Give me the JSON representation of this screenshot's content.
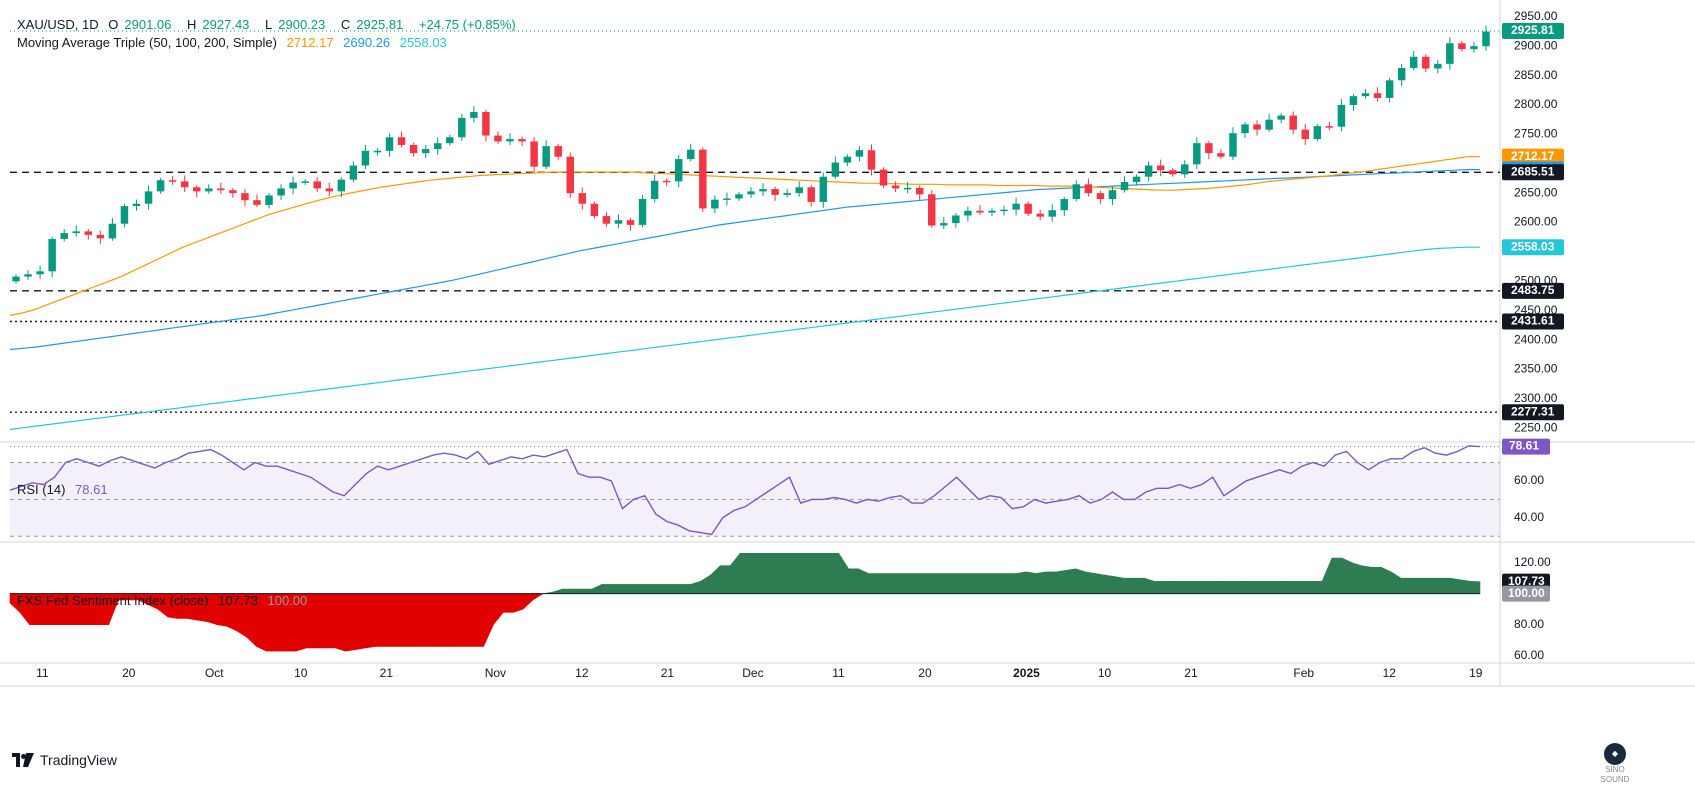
{
  "header": {
    "symbol": "XAU/USD, 1D",
    "open_label": "O",
    "open": "2901.06",
    "high_label": "H",
    "high": "2927.43",
    "low_label": "L",
    "low": "2900.23",
    "close_label": "C",
    "close": "2925.81",
    "change": "+24.75 (+0.85%)",
    "ma_title": "Moving Average Triple (50, 100, 200, Simple)",
    "ma50": "2712.17",
    "ma100": "2690.26",
    "ma200": "2558.03"
  },
  "rsi_legend": {
    "title": "RSI (14)",
    "value": "78.61"
  },
  "fxs_legend": {
    "title": "FXS Fed Sentiment Index (close)",
    "value": "107.73",
    "base": "100.00"
  },
  "footer": {
    "brand": "TradingView",
    "watermark": "SINO SOUND"
  },
  "colors": {
    "up": "#089981",
    "down": "#f23645",
    "ma50": "#ff9800",
    "ma100": "#2196f3",
    "ma200": "#26c6da",
    "rsi": "#7e57c2",
    "sent_pos": "#2e7d52",
    "sent_neg": "#e00000"
  },
  "chart_data": [
    {
      "type": "candlestick",
      "title": "XAU/USD, 1D",
      "ylim": [
        2230,
        2965
      ],
      "y_ticks": [
        "2950.00",
        "2900.00",
        "2850.00",
        "2800.00",
        "2750.00",
        "2700.00",
        "2650.00",
        "2600.00",
        "2550.00",
        "2500.00",
        "2450.00",
        "2400.00",
        "2350.00",
        "2300.00",
        "2250.00"
      ],
      "x_ticks": [
        "11",
        "20",
        "Oct",
        "10",
        "21",
        "Nov",
        "12",
        "21",
        "Dec",
        "11",
        "20",
        "2025",
        "10",
        "21",
        "Feb",
        "12",
        "19"
      ],
      "closes": [
        2508,
        2512,
        2517,
        2572,
        2582,
        2585,
        2579,
        2573,
        2598,
        2628,
        2632,
        2653,
        2672,
        2670,
        2660,
        2653,
        2658,
        2655,
        2650,
        2638,
        2630,
        2646,
        2658,
        2668,
        2670,
        2658,
        2653,
        2673,
        2697,
        2722,
        2722,
        2745,
        2732,
        2718,
        2725,
        2735,
        2745,
        2778,
        2788,
        2748,
        2738,
        2742,
        2738,
        2695,
        2730,
        2712,
        2650,
        2632,
        2611,
        2598,
        2604,
        2596,
        2640,
        2671,
        2670,
        2708,
        2724,
        2624,
        2639,
        2641,
        2648,
        2653,
        2657,
        2647,
        2650,
        2660,
        2635,
        2678,
        2702,
        2712,
        2723,
        2690,
        2663,
        2658,
        2659,
        2648,
        2595,
        2599,
        2612,
        2620,
        2617,
        2620,
        2622,
        2632,
        2615,
        2610,
        2621,
        2640,
        2665,
        2650,
        2640,
        2655,
        2669,
        2678,
        2697,
        2689,
        2682,
        2699,
        2735,
        2718,
        2712,
        2752,
        2767,
        2758,
        2775,
        2782,
        2758,
        2742,
        2764,
        2763,
        2800,
        2815,
        2820,
        2812,
        2842,
        2863,
        2882,
        2862,
        2870,
        2905,
        2895,
        2900,
        2925
      ],
      "ma50": [
        2442,
        2446,
        2452,
        2460,
        2468,
        2476,
        2484,
        2492,
        2500,
        2508,
        2518,
        2528,
        2538,
        2548,
        2558,
        2566,
        2574,
        2582,
        2590,
        2598,
        2606,
        2614,
        2620,
        2626,
        2632,
        2638,
        2643,
        2648,
        2652,
        2656,
        2660,
        2663,
        2666,
        2669,
        2672,
        2674,
        2676,
        2678,
        2680,
        2681,
        2682,
        2683,
        2684,
        2685,
        2686,
        2686,
        2686,
        2686,
        2686,
        2686,
        2686,
        2685,
        2684,
        2683,
        2682,
        2681,
        2680,
        2679,
        2678,
        2677,
        2676,
        2675,
        2674,
        2673,
        2672,
        2671,
        2670,
        2669,
        2668,
        2667,
        2667,
        2666,
        2666,
        2665,
        2665,
        2665,
        2664,
        2664,
        2664,
        2664,
        2663,
        2663,
        2663,
        2663,
        2662,
        2662,
        2662,
        2661,
        2660,
        2659,
        2658,
        2657,
        2656,
        2655,
        2655,
        2656,
        2657,
        2658,
        2660,
        2662,
        2664,
        2667,
        2670,
        2672,
        2674,
        2676,
        2678,
        2680,
        2683,
        2685,
        2688,
        2691,
        2694,
        2697,
        2700,
        2703,
        2706,
        2709,
        2712,
        2712
      ],
      "ma100": [
        2384,
        2386,
        2388,
        2391,
        2394,
        2397,
        2400,
        2403,
        2406,
        2409,
        2412,
        2415,
        2418,
        2421,
        2424,
        2427,
        2430,
        2433,
        2436,
        2439,
        2442,
        2446,
        2450,
        2454,
        2458,
        2462,
        2466,
        2470,
        2474,
        2478,
        2482,
        2486,
        2490,
        2494,
        2498,
        2502,
        2507,
        2512,
        2517,
        2522,
        2527,
        2532,
        2537,
        2542,
        2547,
        2552,
        2556,
        2560,
        2564,
        2568,
        2572,
        2576,
        2580,
        2584,
        2588,
        2592,
        2596,
        2599,
        2602,
        2605,
        2608,
        2611,
        2614,
        2617,
        2620,
        2623,
        2626,
        2628,
        2630,
        2632,
        2634,
        2636,
        2638,
        2640,
        2642,
        2644,
        2646,
        2648,
        2650,
        2652,
        2654,
        2656,
        2657,
        2658,
        2659,
        2660,
        2661,
        2662,
        2663,
        2664,
        2665,
        2666,
        2667,
        2668,
        2669,
        2670,
        2671,
        2672,
        2673,
        2674,
        2675,
        2676,
        2677,
        2678,
        2679,
        2680,
        2681,
        2682,
        2683,
        2684,
        2685,
        2686,
        2687,
        2688,
        2689,
        2690,
        2690
      ],
      "ma200": [
        2248,
        2251,
        2254,
        2257,
        2260,
        2263,
        2266,
        2269,
        2272,
        2275,
        2278,
        2281,
        2284,
        2287,
        2290,
        2293,
        2296,
        2299,
        2302,
        2305,
        2308,
        2311,
        2314,
        2317,
        2320,
        2323,
        2326,
        2329,
        2332,
        2335,
        2338,
        2341,
        2344,
        2347,
        2350,
        2353,
        2356,
        2359,
        2362,
        2365,
        2368,
        2371,
        2374,
        2377,
        2380,
        2383,
        2386,
        2389,
        2392,
        2395,
        2398,
        2401,
        2404,
        2407,
        2410,
        2413,
        2416,
        2419,
        2422,
        2425,
        2428,
        2431,
        2434,
        2437,
        2440,
        2443,
        2446,
        2449,
        2452,
        2455,
        2458,
        2461,
        2464,
        2467,
        2470,
        2473,
        2476,
        2479,
        2482,
        2485,
        2488,
        2491,
        2494,
        2497,
        2500,
        2503,
        2506,
        2509,
        2512,
        2515,
        2518,
        2521,
        2524,
        2527,
        2530,
        2533,
        2536,
        2539,
        2542,
        2545,
        2548,
        2551,
        2554,
        2556,
        2557,
        2558,
        2558
      ],
      "ma_series": [
        {
          "name": "MA 50",
          "last": 2712.17
        },
        {
          "name": "MA 100",
          "last": 2690.26
        },
        {
          "name": "MA 200",
          "last": 2558.03
        }
      ],
      "horizontal_lines": [
        {
          "style": "dashed",
          "value": 2685.51
        },
        {
          "style": "dashed",
          "value": 2483.75
        },
        {
          "style": "dotted",
          "value": 2431.61
        },
        {
          "style": "dotted",
          "value": 2277.31
        }
      ],
      "price_labels": [
        "2925.81",
        "2712.17",
        "2690.26",
        "2685.51",
        "2558.03",
        "2483.75",
        "2431.61",
        "2277.31"
      ],
      "last_close": 2925.81
    },
    {
      "type": "line",
      "title": "RSI (14)",
      "ylim": [
        28,
        80
      ],
      "bands": [
        30,
        50,
        70
      ],
      "y_ticks": [
        "60.00",
        "40.00"
      ],
      "values": [
        55,
        57,
        59,
        58,
        62,
        70,
        72,
        70,
        68,
        71,
        73,
        71,
        69,
        67,
        70,
        72,
        75,
        76,
        77,
        74,
        70,
        66,
        70,
        68,
        68,
        66,
        64,
        62,
        58,
        54,
        52,
        58,
        64,
        68,
        66,
        68,
        70,
        72,
        74,
        75,
        74,
        72,
        76,
        69,
        71,
        73,
        72,
        74,
        73,
        75,
        77,
        64,
        62,
        62,
        60,
        45,
        50,
        52,
        42,
        38,
        36,
        33,
        32,
        31,
        40,
        44,
        46,
        50,
        54,
        58,
        62,
        48,
        50,
        50,
        51,
        50,
        48,
        50,
        49,
        51,
        52,
        48,
        48,
        52,
        57,
        62,
        56,
        50,
        52,
        51,
        45,
        46,
        50,
        48,
        49,
        50,
        52,
        48,
        50,
        54,
        50,
        50,
        54,
        56,
        56,
        58,
        56,
        58,
        62,
        52,
        56,
        60,
        62,
        64,
        66,
        64,
        68,
        70,
        68,
        74,
        76,
        70,
        66,
        70,
        72,
        72,
        76,
        78,
        75,
        74,
        76,
        79,
        78.61
      ],
      "last": 78.61
    },
    {
      "type": "area",
      "title": "FXS Fed Sentiment Index (close)",
      "baseline": 100,
      "ylim": [
        56,
        132
      ],
      "y_ticks": [
        "120.00",
        "80.00",
        "60.00"
      ],
      "values": [
        94,
        88,
        80,
        80,
        80,
        80,
        80,
        80,
        80,
        80,
        80,
        96,
        96,
        96,
        93,
        90,
        85,
        84,
        84,
        83,
        82,
        80,
        79,
        76,
        72,
        66,
        63,
        63,
        63,
        63,
        65,
        65,
        65,
        65,
        63,
        64,
        65,
        66,
        66,
        66,
        66,
        66,
        66,
        66,
        66,
        66,
        66,
        66,
        66,
        80,
        88,
        88,
        90,
        96,
        100,
        101,
        103,
        103,
        103,
        103,
        106,
        106,
        106,
        106,
        106,
        106,
        106,
        106,
        106,
        106,
        108,
        112,
        118,
        118,
        126,
        126,
        126,
        126,
        126,
        126,
        126,
        126,
        126,
        126,
        126,
        116,
        116,
        113,
        113,
        113,
        113,
        113,
        113,
        113,
        113,
        113,
        113,
        113,
        113,
        113,
        113,
        113,
        113,
        114,
        113,
        114,
        114,
        115,
        116,
        114,
        113,
        112,
        111,
        110,
        110,
        110,
        108,
        108,
        108,
        108,
        108,
        108,
        108,
        108,
        108,
        108,
        108,
        108,
        108,
        108,
        108,
        108,
        108,
        108,
        123,
        123,
        120,
        118,
        117,
        117,
        114,
        110,
        110,
        110,
        110,
        110,
        110,
        109,
        108,
        107.73
      ],
      "last": 107.73
    }
  ]
}
